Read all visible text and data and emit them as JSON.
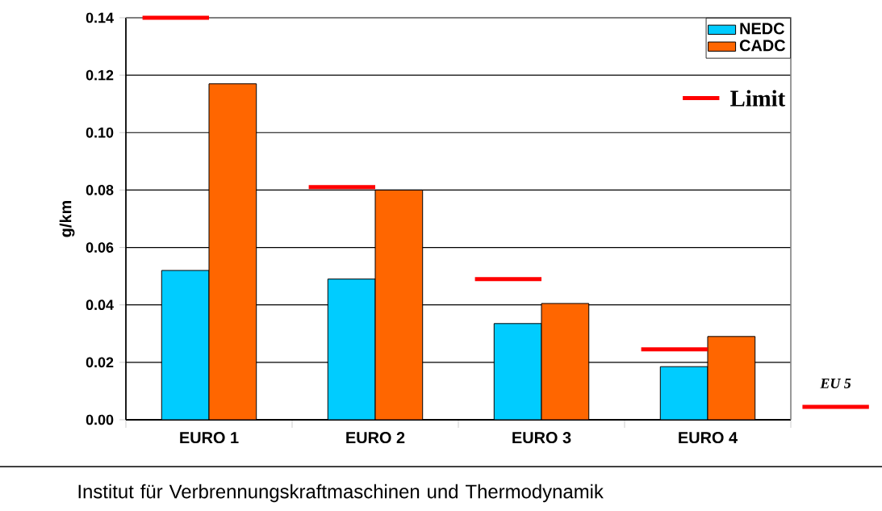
{
  "chart_data": {
    "type": "bar",
    "ylabel": "g/km",
    "categories": [
      "EURO 1",
      "EURO 2",
      "EURO 3",
      "EURO 4"
    ],
    "series": [
      {
        "name": "NEDC",
        "color": "#00ccff",
        "values": [
          0.052,
          0.049,
          0.0335,
          0.0185
        ]
      },
      {
        "name": "CADC",
        "color": "#ff6600",
        "values": [
          0.117,
          0.08,
          0.0405,
          0.029
        ]
      }
    ],
    "ylim": [
      0,
      0.14
    ],
    "yticks": [
      {
        "value": 0,
        "label": "0.00"
      },
      {
        "value": 0.02,
        "label": "0.02"
      },
      {
        "value": 0.04,
        "label": "0.04"
      },
      {
        "value": 0.06,
        "label": "0.06"
      },
      {
        "value": 0.08,
        "label": "0.08"
      },
      {
        "value": 0.1,
        "label": "0.10"
      },
      {
        "value": 0.12,
        "label": "0.12"
      },
      {
        "value": 0.14,
        "label": "0.14"
      }
    ],
    "grid": "y",
    "legend": "top right",
    "ref_lines": [
      {
        "axis": "y",
        "value": 0.14,
        "color": "#ff0000"
      },
      {
        "axis": "y",
        "value": 0.081,
        "color": "#ff0000"
      },
      {
        "axis": "y",
        "value": 0.049,
        "color": "#ff0000"
      },
      {
        "axis": "y",
        "value": 0.0245,
        "color": "#ff0000"
      },
      {
        "axis": "y",
        "value": 0.0045,
        "color": "#ff0000",
        "label": "EU 5"
      }
    ],
    "annotations": [
      "Limit",
      "Institut für Verbrennungskraftmaschinen und Thermodynamik"
    ]
  }
}
